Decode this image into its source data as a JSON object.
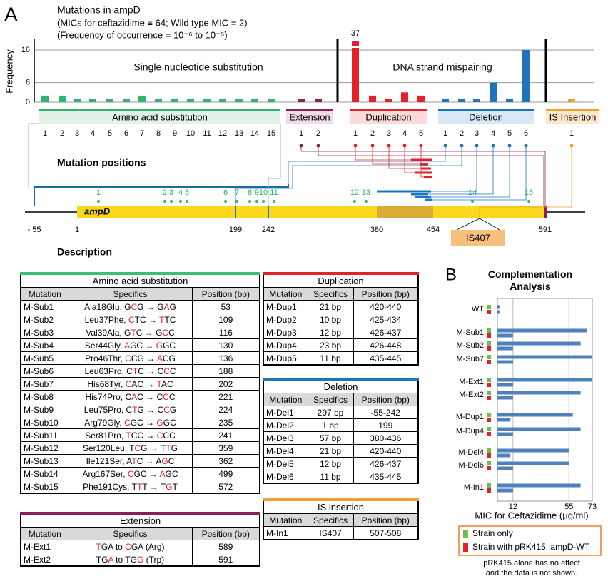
{
  "panel_labels": [
    "A",
    "B"
  ],
  "chart_data": [
    {
      "type": "bar",
      "title": "Mutations in ampD",
      "subtitle": [
        "(MICs for ceftazidime ≡ 64; Wild type MIC = 2)",
        "(Frequency of occurrence = 10⁻⁶ to 10⁻⁵)"
      ],
      "ylabel": "Frequency",
      "ylim": [
        0,
        37
      ],
      "yticks": [
        0,
        6,
        16
      ],
      "grid": true,
      "annotations": [
        "Single nucleotide substitution",
        "DNA strand mispairing"
      ],
      "groups": [
        {
          "name": "Amino acid substitution",
          "color": "#2fb36f",
          "header_color": "#e3f3e6",
          "categories": [
            "1",
            "2",
            "3",
            "4",
            "5",
            "6",
            "7",
            "8",
            "9",
            "10",
            "11",
            "12",
            "13",
            "14",
            "15"
          ],
          "values": [
            2,
            2,
            1,
            1,
            1,
            1,
            2,
            1,
            1,
            1,
            1,
            1,
            1,
            1,
            1
          ]
        },
        {
          "name": "Extension",
          "color": "#8a1f5c",
          "header_color": "#f2dce8",
          "categories": [
            "1",
            "2"
          ],
          "values": [
            1,
            1
          ]
        },
        {
          "name": "Duplication",
          "color": "#e5202a",
          "header_color": "#fbdada",
          "categories": [
            "1",
            "2",
            "3",
            "4",
            "5"
          ],
          "values": [
            37,
            2,
            1,
            3,
            2
          ]
        },
        {
          "name": "Deletion",
          "color": "#1f74c0",
          "header_color": "#d8e8f6",
          "categories": [
            "1",
            "2",
            "3",
            "4",
            "5",
            "6"
          ],
          "values": [
            1,
            1,
            1,
            6,
            1,
            16
          ]
        },
        {
          "name": "IS Insertion",
          "color": "#f0a02e",
          "header_color": "#fde8cb",
          "categories": [
            "1"
          ],
          "values": [
            1
          ]
        }
      ]
    },
    {
      "type": "barh",
      "title": "Complementation Analysis",
      "xlabel": "MIC for Ceftazidime (μg/ml)",
      "categories": [
        "WT",
        "M-Sub1",
        "M-Sub2",
        "M-Sub7",
        "M-Ext1",
        "M-Ext2",
        "M-Dup1",
        "M-Dup4",
        "M-Del4",
        "M-Del6",
        "M-In1"
      ],
      "xlim": [
        0,
        73
      ],
      "xticks": [
        12,
        55,
        73
      ],
      "grid": true,
      "bar_color": "#4f81bd",
      "legend": "bottom",
      "series": [
        {
          "name": "Strain only",
          "color": "#6cc04a",
          "values": [
            2,
            69,
            64,
            73,
            73,
            64,
            58,
            64,
            55,
            55,
            64
          ]
        },
        {
          "name": "Strain with pRK415::ampD-WT",
          "color": "#e5202a",
          "values": [
            2,
            12,
            12,
            12,
            12,
            12,
            10,
            12,
            10,
            12,
            12
          ]
        }
      ],
      "note": [
        "pRK415 alone has no effect",
        "and the data is not shown."
      ]
    }
  ],
  "diagram": {
    "title": "Mutation positions",
    "gene": "ampD",
    "positions": [
      "- 55",
      "1",
      "199",
      "242",
      "380",
      "454",
      "591"
    ],
    "sites": [
      "1",
      "2",
      "3",
      "4",
      "5",
      "6",
      "7",
      "8",
      "9",
      "10",
      "11",
      "12",
      "13",
      "14",
      "15"
    ],
    "insertion": "IS407"
  },
  "description": "Description",
  "tables": [
    {
      "title": "Amino acid substitution",
      "color": "#3cc06f",
      "columns": [
        "Mutation",
        "Specifics",
        "Position (bp)"
      ],
      "rows": [
        [
          "M-Sub1",
          "Ala18Glu,  GCG → GAG",
          "53"
        ],
        [
          "M-Sub2",
          "Leu37Phe,  CTC → TTC",
          "109"
        ],
        [
          "M-Sub3",
          "Val39Ala,  GTC → GCC",
          "116"
        ],
        [
          "M-Sub4",
          "Ser44Gly,  AGC → GGC",
          "130"
        ],
        [
          "M-Sub5",
          "Pro46Thr,  CCG → ACG",
          "136"
        ],
        [
          "M-Sub6",
          "Leu63Pro,  CTC → CCC",
          "188"
        ],
        [
          "M-Sub7",
          "His68Tyr,  CAC → TAC",
          "202"
        ],
        [
          "M-Sub8",
          "His74Pro,  CAC → CCC",
          "221"
        ],
        [
          "M-Sub9",
          "Leu75Pro,  CTG → CCG",
          "224"
        ],
        [
          "M-Sub10",
          "Arg79Gly,  CGC → GGC",
          "235"
        ],
        [
          "M-Sub11",
          "Ser81Pro,  TCC → CCC",
          "241"
        ],
        [
          "M-Sub12",
          "Ser120Leu,  TCG → TTG",
          "359"
        ],
        [
          "M-Sub13",
          "Ile121Ser,  ATC → AGC",
          "362"
        ],
        [
          "M-Sub14",
          "Arg167Ser,  CGC → AGC",
          "499"
        ],
        [
          "M-Sub15",
          "Phe191Cys,  TTT → TGT",
          "572"
        ]
      ]
    },
    {
      "title": "Extension",
      "color": "#8a1f5c",
      "columns": [
        "Mutation",
        "Specifics",
        "Position (bp)"
      ],
      "rows": [
        [
          "M-Ext1",
          "TGA to CGA (Arg)",
          "589"
        ],
        [
          "M-Ext2",
          "TGA to TGG (Trp)",
          "591"
        ]
      ]
    },
    {
      "title": "Duplication",
      "color": "#e5202a",
      "columns": [
        "Mutation",
        "Specifics",
        "Position (bp)"
      ],
      "rows": [
        [
          "M-Dup1",
          "21 bp",
          "420-440"
        ],
        [
          "M-Dup2",
          "10 bp",
          "425-434"
        ],
        [
          "M-Dup3",
          "12 bp",
          "426-437"
        ],
        [
          "M-Dup4",
          "23 bp",
          "426-448"
        ],
        [
          "M-Dup5",
          "11 bp",
          "435-445"
        ]
      ]
    },
    {
      "title": "Deletion",
      "color": "#1f74c0",
      "columns": [
        "Mutation",
        "Specifics",
        "Position (bp)"
      ],
      "rows": [
        [
          "M-Del1",
          "297 bp",
          "-55-242"
        ],
        [
          "M-Del2",
          "1 bp",
          "199"
        ],
        [
          "M-Del3",
          "57 bp",
          "380-436"
        ],
        [
          "M-Del4",
          "21 bp",
          "420-440"
        ],
        [
          "M-Del5",
          "12 bp",
          "426-437"
        ],
        [
          "M-Del6",
          "11 bp",
          "435-445"
        ]
      ]
    },
    {
      "title": "IS insertion",
      "color": "#f0a02e",
      "columns": [
        "Mutation",
        "Specifics",
        "Position (bp)"
      ],
      "rows": [
        [
          "M-In1",
          "IS407",
          "507-508"
        ]
      ]
    }
  ]
}
